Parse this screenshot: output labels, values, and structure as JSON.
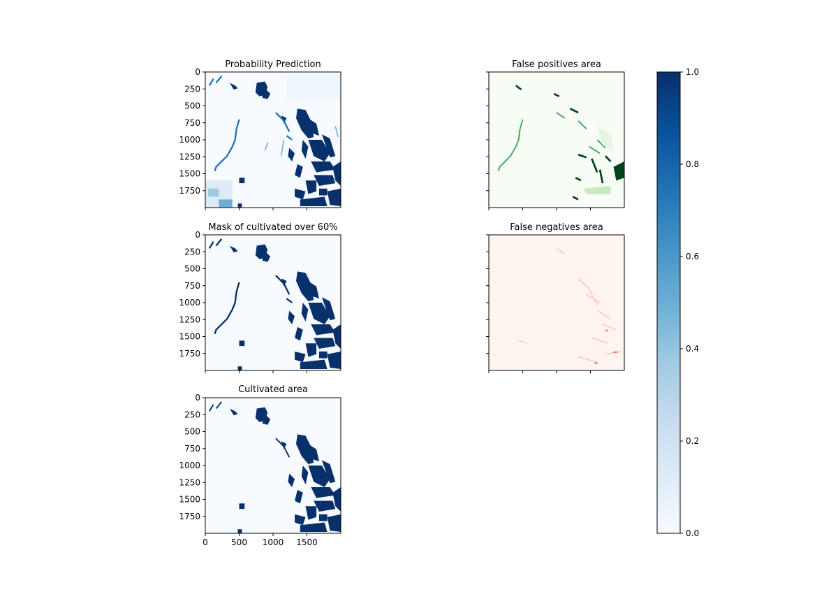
{
  "chart_data": [
    {
      "type": "heatmap",
      "title": "Probability Prediction",
      "colormap": "Blues",
      "xlim": [
        0,
        2000
      ],
      "ylim": [
        2000,
        0
      ],
      "yticks": [
        0,
        250,
        500,
        750,
        1000,
        1250,
        1500,
        1750
      ],
      "xticks": [
        0,
        500,
        1000,
        1500
      ],
      "show_xtick_labels": false,
      "show_ytick_labels": true
    },
    {
      "type": "heatmap",
      "title": "False positives area",
      "colormap": "Greens",
      "xlim": [
        0,
        2000
      ],
      "ylim": [
        2000,
        0
      ],
      "yticks": [
        0,
        250,
        500,
        750,
        1000,
        1250,
        1500,
        1750
      ],
      "xticks": [
        0,
        500,
        1000,
        1500
      ],
      "show_xtick_labels": false,
      "show_ytick_labels": false
    },
    {
      "type": "heatmap",
      "title": "Mask of cultivated over 60%",
      "colormap": "Blues",
      "xlim": [
        0,
        2000
      ],
      "ylim": [
        2000,
        0
      ],
      "yticks": [
        0,
        250,
        500,
        750,
        1000,
        1250,
        1500,
        1750
      ],
      "xticks": [
        0,
        500,
        1000,
        1500
      ],
      "show_xtick_labels": false,
      "show_ytick_labels": true
    },
    {
      "type": "heatmap",
      "title": "False negatives area",
      "colormap": "Reds",
      "xlim": [
        0,
        2000
      ],
      "ylim": [
        2000,
        0
      ],
      "yticks": [
        0,
        250,
        500,
        750,
        1000,
        1250,
        1500,
        1750
      ],
      "xticks": [
        0,
        500,
        1000,
        1500
      ],
      "show_xtick_labels": false,
      "show_ytick_labels": false
    },
    {
      "type": "heatmap",
      "title": "Cultivated area",
      "colormap": "Blues",
      "xlim": [
        0,
        2000
      ],
      "ylim": [
        2000,
        0
      ],
      "yticks": [
        0,
        250,
        500,
        750,
        1000,
        1250,
        1500,
        1750
      ],
      "xticks": [
        0,
        500,
        1000,
        1500
      ],
      "show_xtick_labels": true,
      "show_ytick_labels": true
    }
  ],
  "colorbar": {
    "colormap": "Blues",
    "range": [
      0.0,
      1.0
    ],
    "ticks": [
      "0.0",
      "0.2",
      "0.4",
      "0.6",
      "0.8",
      "1.0"
    ]
  },
  "colors": {
    "blues_low": "#f7fbff",
    "blues_high": "#08306b",
    "greens_low": "#f7fcf5",
    "greens_high": "#00441b",
    "reds_low": "#fff5f0",
    "reds_high": "#67000d"
  }
}
